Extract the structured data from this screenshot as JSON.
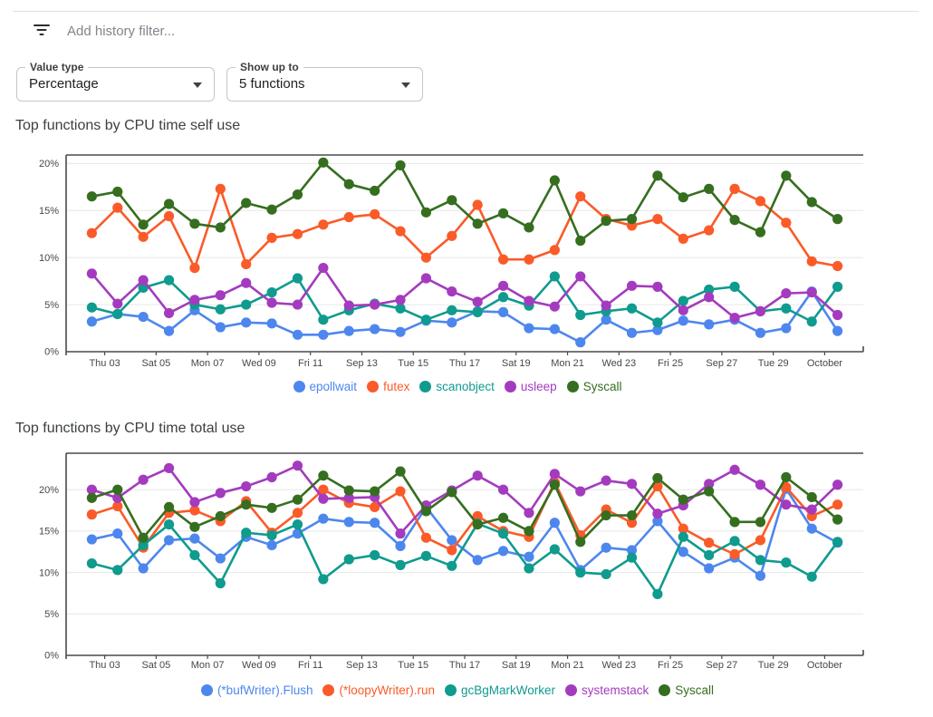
{
  "filter_bar": {
    "placeholder": "Add history filter..."
  },
  "controls": {
    "value_type": {
      "label": "Value type",
      "value": "Percentage"
    },
    "show_up_to": {
      "label": "Show up to",
      "value": "5 functions"
    }
  },
  "chart_data": [
    {
      "type": "line",
      "title": "Top functions by CPU time self use",
      "x_tick_labels": [
        "Thu 03",
        "Sat 05",
        "Mon 07",
        "Wed 09",
        "Fri 11",
        "Sep 13",
        "Tue 15",
        "Thu 17",
        "Sat 19",
        "Mon 21",
        "Wed 23",
        "Fri 25",
        "Sep 27",
        "Tue 29",
        "October"
      ],
      "y_tick_labels": [
        "0%",
        "5%",
        "10%",
        "15%",
        "20%"
      ],
      "y_tick_values": [
        0,
        5,
        10,
        15,
        20
      ],
      "ylim": [
        0,
        20.9
      ],
      "grid": true,
      "legend_position": "bottom",
      "series": [
        {
          "name": "epollwait",
          "color": "#4d87ee",
          "values": [
            3.2,
            4.0,
            3.7,
            2.2,
            4.4,
            2.6,
            3.1,
            3.0,
            1.8,
            1.8,
            2.2,
            2.4,
            2.1,
            3.3,
            3.1,
            4.3,
            4.2,
            2.5,
            2.4,
            1.0,
            3.4,
            2.0,
            2.3,
            3.3,
            2.9,
            3.4,
            2.0,
            2.5,
            6.4,
            2.2
          ]
        },
        {
          "name": "futex",
          "color": "#fa5b28",
          "values": [
            12.6,
            15.3,
            12.2,
            14.4,
            8.9,
            17.3,
            9.3,
            12.1,
            12.5,
            13.5,
            14.3,
            14.6,
            12.8,
            10.0,
            12.3,
            15.6,
            9.8,
            9.8,
            10.8,
            16.5,
            14.1,
            13.4,
            14.1,
            12.0,
            12.9,
            17.3,
            16.0,
            13.7,
            9.6,
            9.1
          ]
        },
        {
          "name": "scanobject",
          "color": "#0f9b8e",
          "values": [
            4.7,
            4.0,
            6.8,
            7.6,
            5.0,
            4.5,
            5.0,
            6.3,
            7.8,
            3.4,
            4.4,
            5.1,
            4.6,
            3.4,
            4.4,
            4.2,
            5.8,
            4.9,
            8.0,
            3.9,
            4.3,
            4.6,
            3.1,
            5.4,
            6.6,
            6.9,
            4.3,
            4.6,
            3.2,
            6.9
          ]
        },
        {
          "name": "usleep",
          "color": "#a43bbf",
          "values": [
            8.3,
            5.1,
            7.6,
            4.1,
            5.5,
            6.0,
            7.3,
            5.2,
            5.0,
            8.9,
            4.9,
            5.0,
            5.5,
            7.8,
            6.4,
            5.3,
            7.0,
            5.4,
            4.8,
            8.0,
            4.9,
            7.0,
            6.9,
            4.4,
            5.8,
            3.6,
            4.3,
            6.2,
            6.3,
            3.9
          ]
        },
        {
          "name": "Syscall",
          "color": "#366e20",
          "values": [
            16.5,
            17.0,
            13.5,
            15.7,
            13.6,
            13.2,
            15.8,
            15.1,
            16.7,
            20.1,
            17.8,
            17.1,
            19.8,
            14.8,
            16.1,
            13.6,
            14.7,
            13.2,
            18.2,
            11.8,
            13.9,
            14.1,
            18.7,
            16.4,
            17.3,
            14.0,
            12.7,
            18.7,
            15.9,
            14.1
          ]
        }
      ]
    },
    {
      "type": "line",
      "title": "Top functions by CPU time total use",
      "x_tick_labels": [
        "Thu 03",
        "Sat 05",
        "Mon 07",
        "Wed 09",
        "Fri 11",
        "Sep 13",
        "Tue 15",
        "Thu 17",
        "Sat 19",
        "Mon 21",
        "Wed 23",
        "Fri 25",
        "Sep 27",
        "Tue 29",
        "October"
      ],
      "y_tick_labels": [
        "0%",
        "5%",
        "10%",
        "15%",
        "20%"
      ],
      "y_tick_values": [
        0,
        5,
        10,
        15,
        20
      ],
      "ylim": [
        0,
        24.4
      ],
      "grid": true,
      "legend_position": "bottom",
      "series": [
        {
          "name": "(*bufWriter).Flush",
          "color": "#4d87ee",
          "values": [
            14.0,
            14.7,
            10.5,
            13.9,
            14.1,
            11.7,
            14.3,
            13.3,
            14.7,
            16.5,
            16.1,
            16.0,
            13.2,
            17.9,
            13.9,
            11.5,
            12.6,
            11.9,
            16.0,
            10.3,
            13.0,
            12.7,
            16.2,
            12.5,
            10.5,
            11.8,
            9.6,
            20.1,
            15.3,
            13.6
          ]
        },
        {
          "name": "(*loopyWriter).run",
          "color": "#fa5b28",
          "values": [
            17.0,
            18.0,
            13.0,
            17.2,
            17.5,
            16.2,
            18.6,
            14.8,
            17.2,
            20.0,
            18.4,
            17.9,
            19.8,
            14.2,
            12.7,
            16.8,
            15.0,
            14.3,
            20.9,
            14.5,
            17.6,
            16.0,
            20.4,
            15.3,
            13.6,
            12.2,
            13.9,
            20.3,
            16.8,
            18.2
          ]
        },
        {
          "name": "gcBgMarkWorker",
          "color": "#0f9b8e",
          "values": [
            11.1,
            10.3,
            13.3,
            15.8,
            12.1,
            8.7,
            14.8,
            14.5,
            15.8,
            9.2,
            11.6,
            12.1,
            10.9,
            12.0,
            10.8,
            15.9,
            14.7,
            10.5,
            12.8,
            10.0,
            9.8,
            11.8,
            7.4,
            14.3,
            12.1,
            13.8,
            11.5,
            11.2,
            9.5,
            13.7
          ]
        },
        {
          "name": "systemstack",
          "color": "#a43bbf",
          "values": [
            20.0,
            19.0,
            21.2,
            22.6,
            18.5,
            19.6,
            20.4,
            21.5,
            22.9,
            18.9,
            19.0,
            19.1,
            14.7,
            18.1,
            19.9,
            21.7,
            20.0,
            17.2,
            21.9,
            19.8,
            21.1,
            20.7,
            17.1,
            18.1,
            20.7,
            22.4,
            20.6,
            18.2,
            17.6,
            20.6
          ]
        },
        {
          "name": "Syscall",
          "color": "#366e20",
          "values": [
            19.0,
            20.0,
            14.2,
            17.9,
            15.5,
            16.8,
            18.2,
            17.8,
            18.8,
            21.7,
            19.9,
            19.8,
            22.2,
            17.4,
            19.7,
            15.8,
            16.6,
            15.0,
            20.6,
            13.7,
            16.9,
            16.9,
            21.4,
            18.8,
            19.8,
            16.1,
            16.1,
            21.5,
            19.1,
            16.4
          ]
        }
      ]
    }
  ]
}
